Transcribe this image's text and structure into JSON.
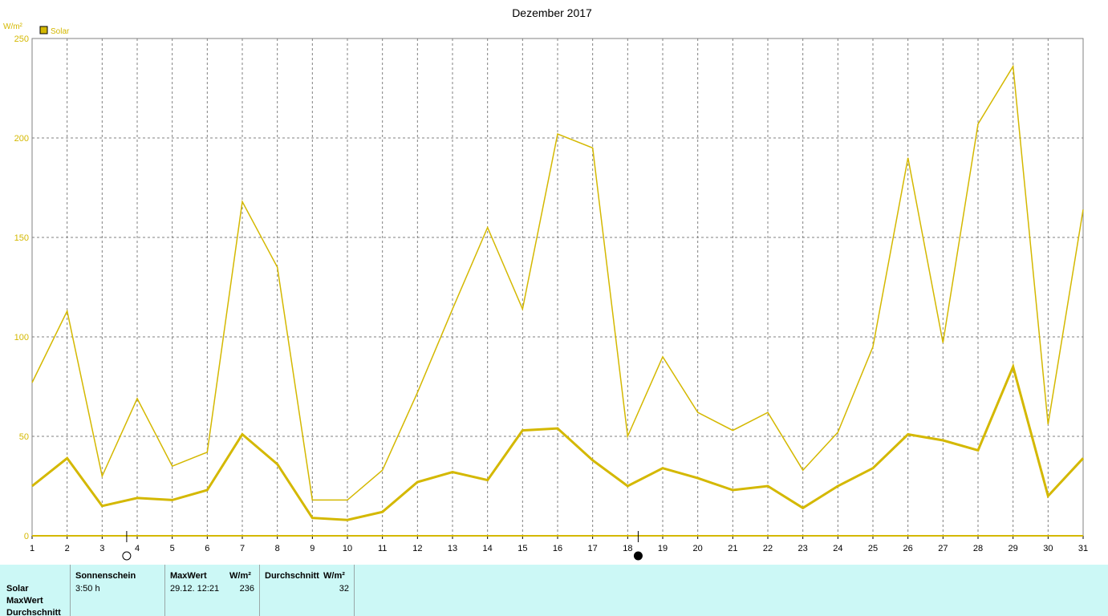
{
  "chart_data": {
    "type": "line",
    "title": "Dezember 2017",
    "unit_label": "W/m²",
    "legend": [
      {
        "name": "Solar",
        "color": "#d4b800"
      }
    ],
    "x": [
      1,
      2,
      3,
      4,
      5,
      6,
      7,
      8,
      9,
      10,
      11,
      12,
      13,
      14,
      15,
      16,
      17,
      18,
      19,
      20,
      21,
      22,
      23,
      24,
      25,
      26,
      27,
      28,
      29,
      30,
      31
    ],
    "ylim": [
      0,
      250
    ],
    "yticks": [
      0,
      50,
      100,
      150,
      200,
      250
    ],
    "grid": true,
    "series": [
      {
        "role": "max",
        "values": [
          77,
          113,
          30,
          69,
          35,
          42,
          168,
          135,
          18,
          18,
          33,
          72,
          114,
          155,
          114,
          202,
          195,
          50,
          90,
          62,
          53,
          62,
          33,
          52,
          95,
          190,
          97,
          207,
          236,
          56,
          164
        ]
      },
      {
        "role": "mean",
        "values": [
          25,
          39,
          15,
          19,
          18,
          23,
          51,
          36,
          9,
          8,
          12,
          27,
          32,
          28,
          53,
          54,
          38,
          25,
          34,
          29,
          23,
          25,
          14,
          25,
          34,
          51,
          48,
          43,
          85,
          20,
          39
        ]
      }
    ],
    "moon_phases": [
      {
        "day": 3.7,
        "phase": "full"
      },
      {
        "day": 18.3,
        "phase": "new"
      }
    ]
  },
  "stats": {
    "headers": {
      "sunshine": "Sonnenschein",
      "maxwert": "MaxWert",
      "unit1": "W/m²",
      "durchschnitt": "Durchschnitt",
      "unit2": "W/m²"
    },
    "row_labels": [
      "Solar",
      "MaxWert",
      "Durchschnitt"
    ],
    "values": {
      "sunshine": "3:50 h",
      "max_time": "29.12.  12:21",
      "max_value": "236",
      "avg_value": "32"
    }
  },
  "colors": {
    "series": "#d4b800",
    "grid": "#808080",
    "panel": "#ccf8f6"
  }
}
